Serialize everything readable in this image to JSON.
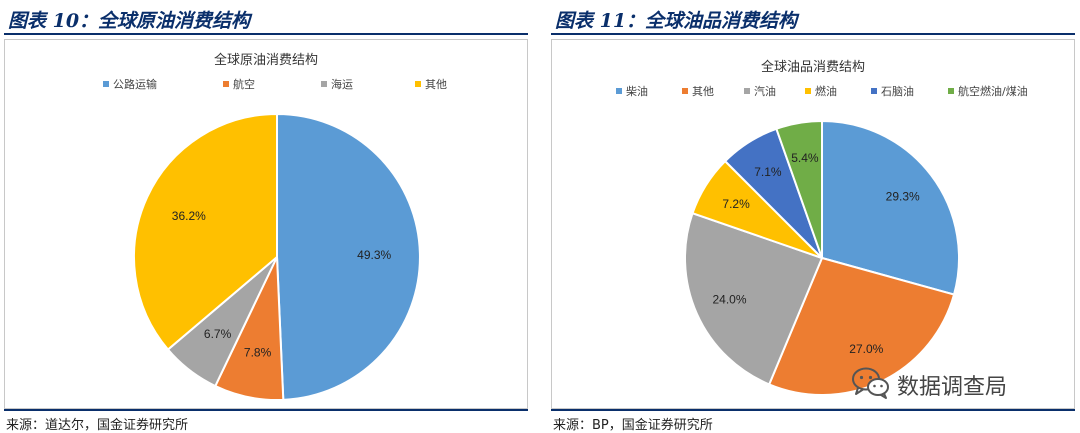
{
  "figures": [
    {
      "fig_title": "图表 10：全球原油消费结构",
      "source": "来源：道达尔，国金证券研究所"
    },
    {
      "fig_title": "图表 11：全球油品消费结构",
      "source": "来源：BP，国金证券研究所"
    }
  ],
  "watermark": {
    "text": "数据调查局",
    "icon": "wechat-icon"
  },
  "chart_data": [
    {
      "type": "pie",
      "title": "全球原油消费结构",
      "legend_position": "top",
      "slices": [
        {
          "label": "公路运输",
          "value": 49.3,
          "display": "49.3%",
          "color": "#5b9bd5"
        },
        {
          "label": "航空",
          "value": 7.8,
          "display": "7.8%",
          "color": "#ed7d31"
        },
        {
          "label": "海运",
          "value": 6.7,
          "display": "6.7%",
          "color": "#a5a5a5"
        },
        {
          "label": "其他",
          "value": 36.2,
          "display": "36.2%",
          "color": "#ffc000"
        }
      ]
    },
    {
      "type": "pie",
      "title": "全球油品消费结构",
      "legend_position": "top",
      "slices": [
        {
          "label": "柴油",
          "value": 29.3,
          "display": "29.3%",
          "color": "#5b9bd5"
        },
        {
          "label": "其他",
          "value": 27.0,
          "display": "27.0%",
          "color": "#ed7d31"
        },
        {
          "label": "汽油",
          "value": 24.0,
          "display": "24.0%",
          "color": "#a5a5a5"
        },
        {
          "label": "燃油",
          "value": 7.2,
          "display": "7.2%",
          "color": "#ffc000"
        },
        {
          "label": "石脑油",
          "value": 7.1,
          "display": "7.1%",
          "color": "#4472c4"
        },
        {
          "label": "航空燃油/煤油",
          "value": 5.4,
          "display": "5.4%",
          "color": "#70ad47"
        }
      ]
    }
  ]
}
